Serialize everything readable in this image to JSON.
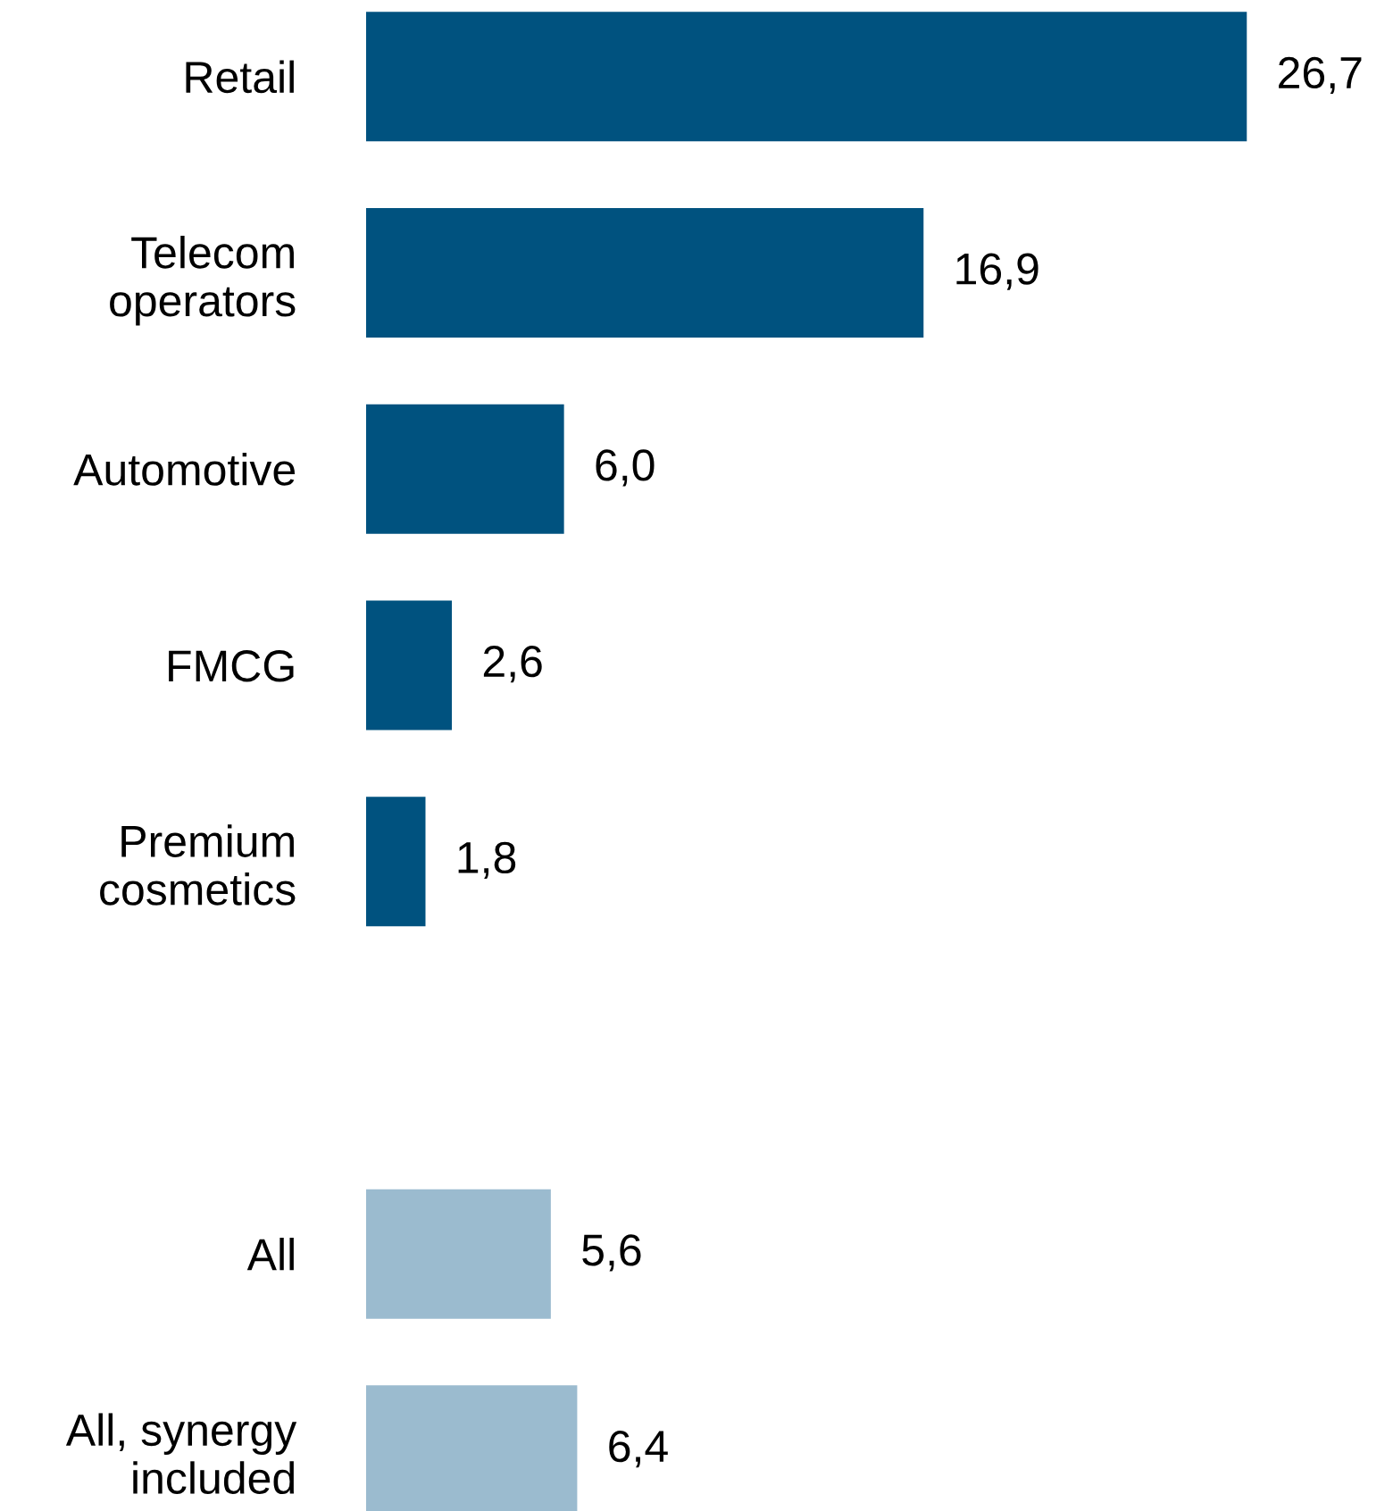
{
  "chart_data": {
    "type": "bar",
    "orientation": "horizontal",
    "categories": [
      "Retail",
      "Telecom\noperators",
      "Automotive",
      "FMCG",
      "Premium\ncosmetics",
      null,
      "All",
      "All, synergy\nincluded"
    ],
    "values": [
      26.7,
      16.9,
      6.0,
      2.6,
      1.8,
      null,
      5.6,
      6.4
    ],
    "value_labels": [
      "26,7",
      "16,9",
      "6,0",
      "2,6",
      "1,8",
      null,
      "5,6",
      "6,4"
    ],
    "colors": [
      "#00527f",
      "#00527f",
      "#00527f",
      "#00527f",
      "#00527f",
      null,
      "#9bbbcf",
      "#9bbbcf"
    ],
    "grid": false,
    "legend": false
  }
}
